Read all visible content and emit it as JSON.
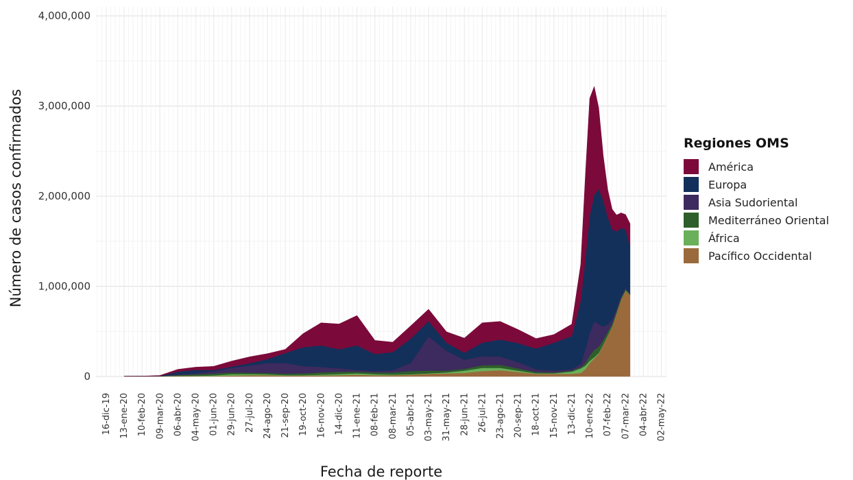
{
  "chart_data": {
    "type": "area",
    "stacked": true,
    "title": "",
    "xlabel": "Fecha de reporte",
    "ylabel": "Número de casos confirmados",
    "ylim": [
      0,
      4100000
    ],
    "xlim": [
      "2019-11-30",
      "2022-05-10"
    ],
    "y_ticks": [
      {
        "value": 0,
        "label": "0"
      },
      {
        "value": 1000000,
        "label": "1,000,000"
      },
      {
        "value": 2000000,
        "label": "2,000,000"
      },
      {
        "value": 3000000,
        "label": "3,000,000"
      },
      {
        "value": 4000000,
        "label": "4,000,000"
      }
    ],
    "x_ticks": [
      {
        "date": "2019-12-16",
        "label": "16-dic-19"
      },
      {
        "date": "2020-01-13",
        "label": "13-ene-20"
      },
      {
        "date": "2020-02-10",
        "label": "10-feb-20"
      },
      {
        "date": "2020-03-09",
        "label": "09-mar-20"
      },
      {
        "date": "2020-04-06",
        "label": "06-abr-20"
      },
      {
        "date": "2020-05-04",
        "label": "04-may-20"
      },
      {
        "date": "2020-06-01",
        "label": "01-jun-20"
      },
      {
        "date": "2020-06-29",
        "label": "29-jun-20"
      },
      {
        "date": "2020-07-27",
        "label": "27-jul-20"
      },
      {
        "date": "2020-08-24",
        "label": "24-ago-20"
      },
      {
        "date": "2020-09-21",
        "label": "21-sep-20"
      },
      {
        "date": "2020-10-19",
        "label": "19-oct-20"
      },
      {
        "date": "2020-11-16",
        "label": "16-nov-20"
      },
      {
        "date": "2020-12-14",
        "label": "14-dic-20"
      },
      {
        "date": "2021-01-11",
        "label": "11-ene-21"
      },
      {
        "date": "2021-02-08",
        "label": "08-feb-21"
      },
      {
        "date": "2021-03-08",
        "label": "08-mar-21"
      },
      {
        "date": "2021-04-05",
        "label": "05-abr-21"
      },
      {
        "date": "2021-05-03",
        "label": "03-may-21"
      },
      {
        "date": "2021-05-31",
        "label": "31-may-21"
      },
      {
        "date": "2021-06-28",
        "label": "28-jun-21"
      },
      {
        "date": "2021-07-26",
        "label": "26-jul-21"
      },
      {
        "date": "2021-08-23",
        "label": "23-ago-21"
      },
      {
        "date": "2021-09-20",
        "label": "20-sep-21"
      },
      {
        "date": "2021-10-18",
        "label": "18-oct-21"
      },
      {
        "date": "2021-11-15",
        "label": "15-nov-21"
      },
      {
        "date": "2021-12-13",
        "label": "13-dic-21"
      },
      {
        "date": "2022-01-10",
        "label": "10-ene-22"
      },
      {
        "date": "2022-02-07",
        "label": "07-feb-22"
      },
      {
        "date": "2022-03-07",
        "label": "07-mar-22"
      },
      {
        "date": "2022-04-04",
        "label": "04-abr-22"
      },
      {
        "date": "2022-05-02",
        "label": "02-may-22"
      }
    ],
    "grid": true,
    "legend": {
      "title": "Regiones OMS",
      "position": "right"
    },
    "dates": [
      "2020-01-13",
      "2020-02-10",
      "2020-03-09",
      "2020-04-06",
      "2020-05-04",
      "2020-06-01",
      "2020-06-29",
      "2020-07-27",
      "2020-08-24",
      "2020-09-21",
      "2020-10-19",
      "2020-11-16",
      "2020-12-14",
      "2021-01-11",
      "2021-02-08",
      "2021-03-08",
      "2021-04-05",
      "2021-05-03",
      "2021-05-31",
      "2021-06-28",
      "2021-07-26",
      "2021-08-23",
      "2021-09-20",
      "2021-10-18",
      "2021-11-15",
      "2021-12-13",
      "2021-12-27",
      "2022-01-03",
      "2022-01-10",
      "2022-01-17",
      "2022-01-24",
      "2022-01-31",
      "2022-02-07",
      "2022-02-14",
      "2022-02-21",
      "2022-02-28",
      "2022-03-07",
      "2022-03-14"
    ],
    "series": [
      {
        "name": "América",
        "color": "#7b0a3a",
        "values": [
          0,
          500,
          5000,
          25000,
          30000,
          40000,
          60000,
          70000,
          60000,
          40000,
          150000,
          250000,
          280000,
          330000,
          150000,
          110000,
          140000,
          130000,
          120000,
          160000,
          220000,
          200000,
          150000,
          110000,
          90000,
          130000,
          400000,
          900000,
          1300000,
          1200000,
          900000,
          500000,
          300000,
          220000,
          180000,
          170000,
          160000,
          250000
        ]
      },
      {
        "name": "Europa",
        "color": "#12305a",
        "values": [
          0,
          200,
          2000,
          30000,
          35000,
          15000,
          15000,
          25000,
          45000,
          110000,
          210000,
          240000,
          210000,
          270000,
          190000,
          200000,
          270000,
          170000,
          90000,
          80000,
          150000,
          190000,
          210000,
          230000,
          310000,
          370000,
          700000,
          1000000,
          1300000,
          1400000,
          1500000,
          1400000,
          1200000,
          1000000,
          850000,
          750000,
          650000,
          520000
        ]
      },
      {
        "name": "Asia Sudoriental",
        "color": "#3d2a5e",
        "values": [
          0,
          0,
          200,
          8000,
          15000,
          25000,
          50000,
          80000,
          110000,
          120000,
          80000,
          60000,
          40000,
          20000,
          15000,
          25000,
          90000,
          380000,
          220000,
          100000,
          100000,
          90000,
          70000,
          30000,
          20000,
          15000,
          40000,
          150000,
          250000,
          320000,
          250000,
          150000,
          80000,
          50000,
          30000,
          20000,
          15000,
          10000
        ]
      },
      {
        "name": "Mediterráneo Oriental",
        "color": "#2e5e2a",
        "values": [
          0,
          100,
          2000,
          8000,
          15000,
          20000,
          20000,
          15000,
          15000,
          15000,
          20000,
          25000,
          25000,
          20000,
          20000,
          25000,
          35000,
          30000,
          20000,
          20000,
          30000,
          35000,
          25000,
          15000,
          10000,
          10000,
          15000,
          30000,
          60000,
          80000,
          70000,
          50000,
          40000,
          30000,
          25000,
          20000,
          15000,
          10000
        ]
      },
      {
        "name": "África",
        "color": "#6ab05a",
        "values": [
          0,
          0,
          200,
          1500,
          4000,
          8000,
          15000,
          12000,
          8000,
          5000,
          5000,
          8000,
          12000,
          15000,
          10000,
          5000,
          5000,
          5000,
          10000,
          25000,
          35000,
          25000,
          15000,
          5000,
          5000,
          25000,
          50000,
          40000,
          25000,
          15000,
          10000,
          5000,
          5000,
          5000,
          5000,
          5000,
          5000,
          5000
        ]
      },
      {
        "name": "Pacífico Occidental",
        "color": "#9a6a3c",
        "values": [
          2000,
          3000,
          2000,
          6000,
          4000,
          4000,
          10000,
          15000,
          15000,
          10000,
          10000,
          12000,
          15000,
          20000,
          15000,
          15000,
          20000,
          30000,
          35000,
          40000,
          60000,
          70000,
          50000,
          30000,
          30000,
          30000,
          40000,
          80000,
          150000,
          200000,
          250000,
          350000,
          450000,
          550000,
          700000,
          850000,
          950000,
          900000
        ]
      }
    ]
  }
}
